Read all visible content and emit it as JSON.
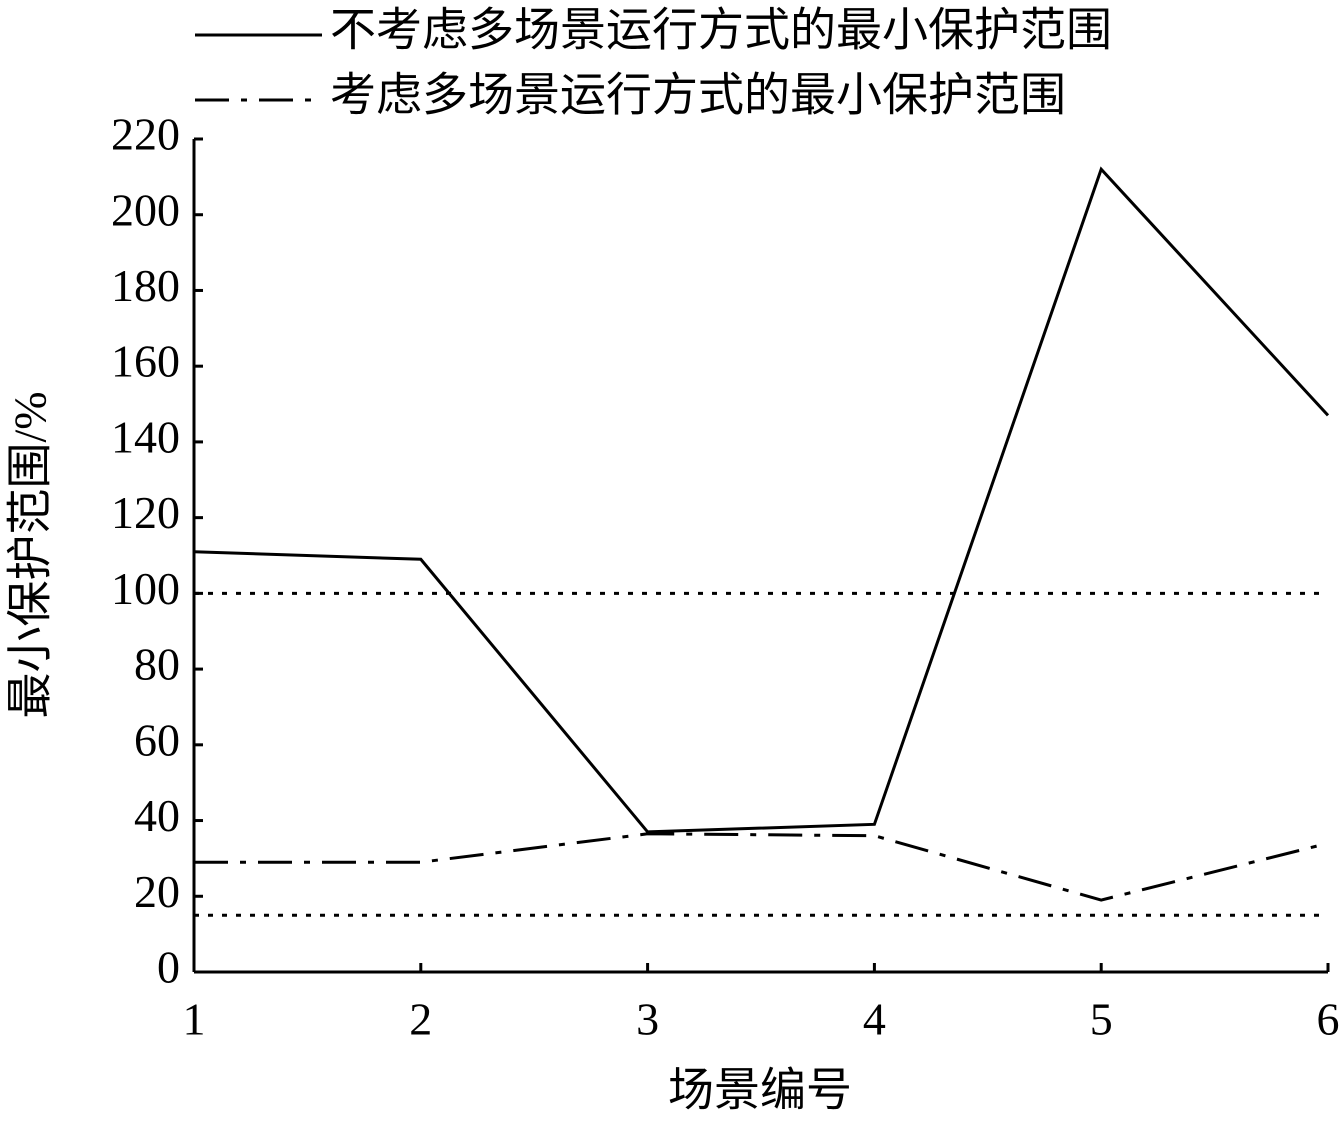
{
  "chart_data": {
    "type": "line",
    "x_label": "场景编号",
    "y_label": "最小保护范围/%",
    "x": [
      1,
      2,
      3,
      4,
      5,
      6
    ],
    "xlim": [
      1,
      6
    ],
    "xticks": [
      1,
      2,
      3,
      4,
      5,
      6
    ],
    "ylim": [
      0,
      220
    ],
    "yticks": [
      0,
      20,
      40,
      60,
      80,
      100,
      120,
      140,
      160,
      180,
      200,
      220
    ],
    "series": [
      {
        "name": "不考虑多场景运行方式的最小保护范围",
        "color": "#000000",
        "style": "solid",
        "values": [
          111,
          109,
          37,
          39,
          212,
          147
        ]
      },
      {
        "name": "考虑多场景运行方式的最小保护范围",
        "color": "#000000",
        "style": "dashdot",
        "values": [
          29,
          29,
          36.5,
          36,
          19,
          34
        ]
      }
    ],
    "reference_lines": [
      100,
      15
    ],
    "legend": "top"
  }
}
